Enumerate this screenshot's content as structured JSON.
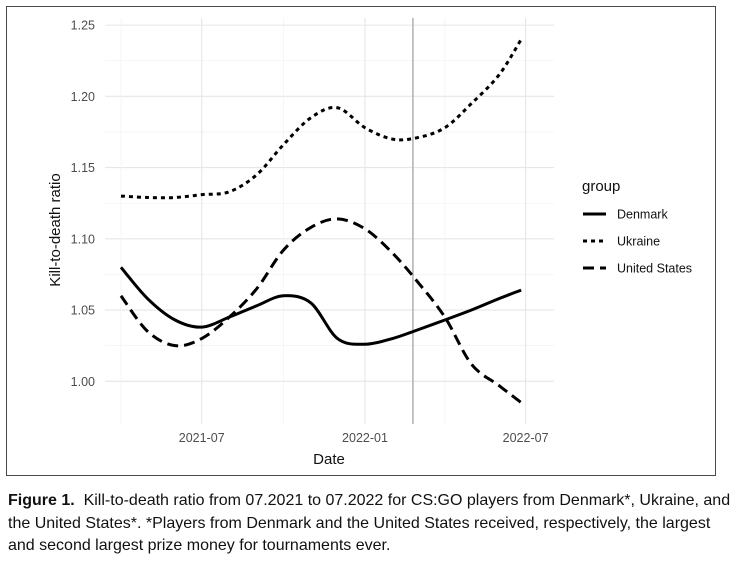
{
  "figure": {
    "caption_label": "Figure 1.",
    "caption_text": "Kill-to-death ratio from 07.2021 to 07.2022 for CS:GO players from Denmark*, Ukraine, and the United States*. *Players from Denmark and the United States received, respectively, the largest and second largest prize money for tournaments ever."
  },
  "chart_data": {
    "type": "line",
    "xlabel": "Date",
    "ylabel": "Kill-to-death ratio",
    "x_ticks": [
      "2021-07",
      "2022-01",
      "2022-07"
    ],
    "y_ticks": [
      "1.00",
      "1.05",
      "1.10",
      "1.15",
      "1.20",
      "1.25"
    ],
    "xlim": [
      "2021-03-14",
      "2022-08-02"
    ],
    "ylim": [
      0.97,
      1.255
    ],
    "grid": true,
    "legend_title": "group",
    "legend_position": "right",
    "reference_line": {
      "x": "2022-02-24",
      "color": "#b0b0b0"
    },
    "series": [
      {
        "name": "Denmark",
        "dash": "solid",
        "x": [
          "2021-04-01",
          "2021-05-01",
          "2021-06-01",
          "2021-07-01",
          "2021-08-01",
          "2021-09-01",
          "2021-10-01",
          "2021-11-01",
          "2021-12-01",
          "2022-01-01",
          "2022-02-01",
          "2022-03-01",
          "2022-04-01",
          "2022-05-01",
          "2022-06-01",
          "2022-06-26"
        ],
        "values": [
          1.08,
          1.058,
          1.043,
          1.038,
          1.045,
          1.053,
          1.06,
          1.055,
          1.03,
          1.026,
          1.03,
          1.036,
          1.043,
          1.05,
          1.058,
          1.064
        ]
      },
      {
        "name": "Ukraine",
        "dash": "dotted",
        "x": [
          "2021-04-01",
          "2021-05-01",
          "2021-06-01",
          "2021-07-01",
          "2021-08-01",
          "2021-09-01",
          "2021-10-01",
          "2021-11-01",
          "2021-12-01",
          "2022-01-01",
          "2022-02-01",
          "2022-03-01",
          "2022-04-01",
          "2022-05-01",
          "2022-06-01",
          "2022-06-26"
        ],
        "values": [
          1.13,
          1.129,
          1.129,
          1.131,
          1.133,
          1.145,
          1.166,
          1.185,
          1.192,
          1.178,
          1.17,
          1.171,
          1.178,
          1.195,
          1.215,
          1.24
        ]
      },
      {
        "name": "United States",
        "dash": "dashed",
        "x": [
          "2021-04-01",
          "2021-05-01",
          "2021-06-01",
          "2021-07-01",
          "2021-08-01",
          "2021-09-01",
          "2021-10-01",
          "2021-11-01",
          "2021-12-01",
          "2022-01-01",
          "2022-02-01",
          "2022-03-01",
          "2022-04-01",
          "2022-05-01",
          "2022-06-01",
          "2022-06-26"
        ],
        "values": [
          1.06,
          1.035,
          1.025,
          1.03,
          1.045,
          1.065,
          1.092,
          1.108,
          1.114,
          1.107,
          1.09,
          1.07,
          1.045,
          1.012,
          0.997,
          0.985
        ]
      }
    ]
  }
}
